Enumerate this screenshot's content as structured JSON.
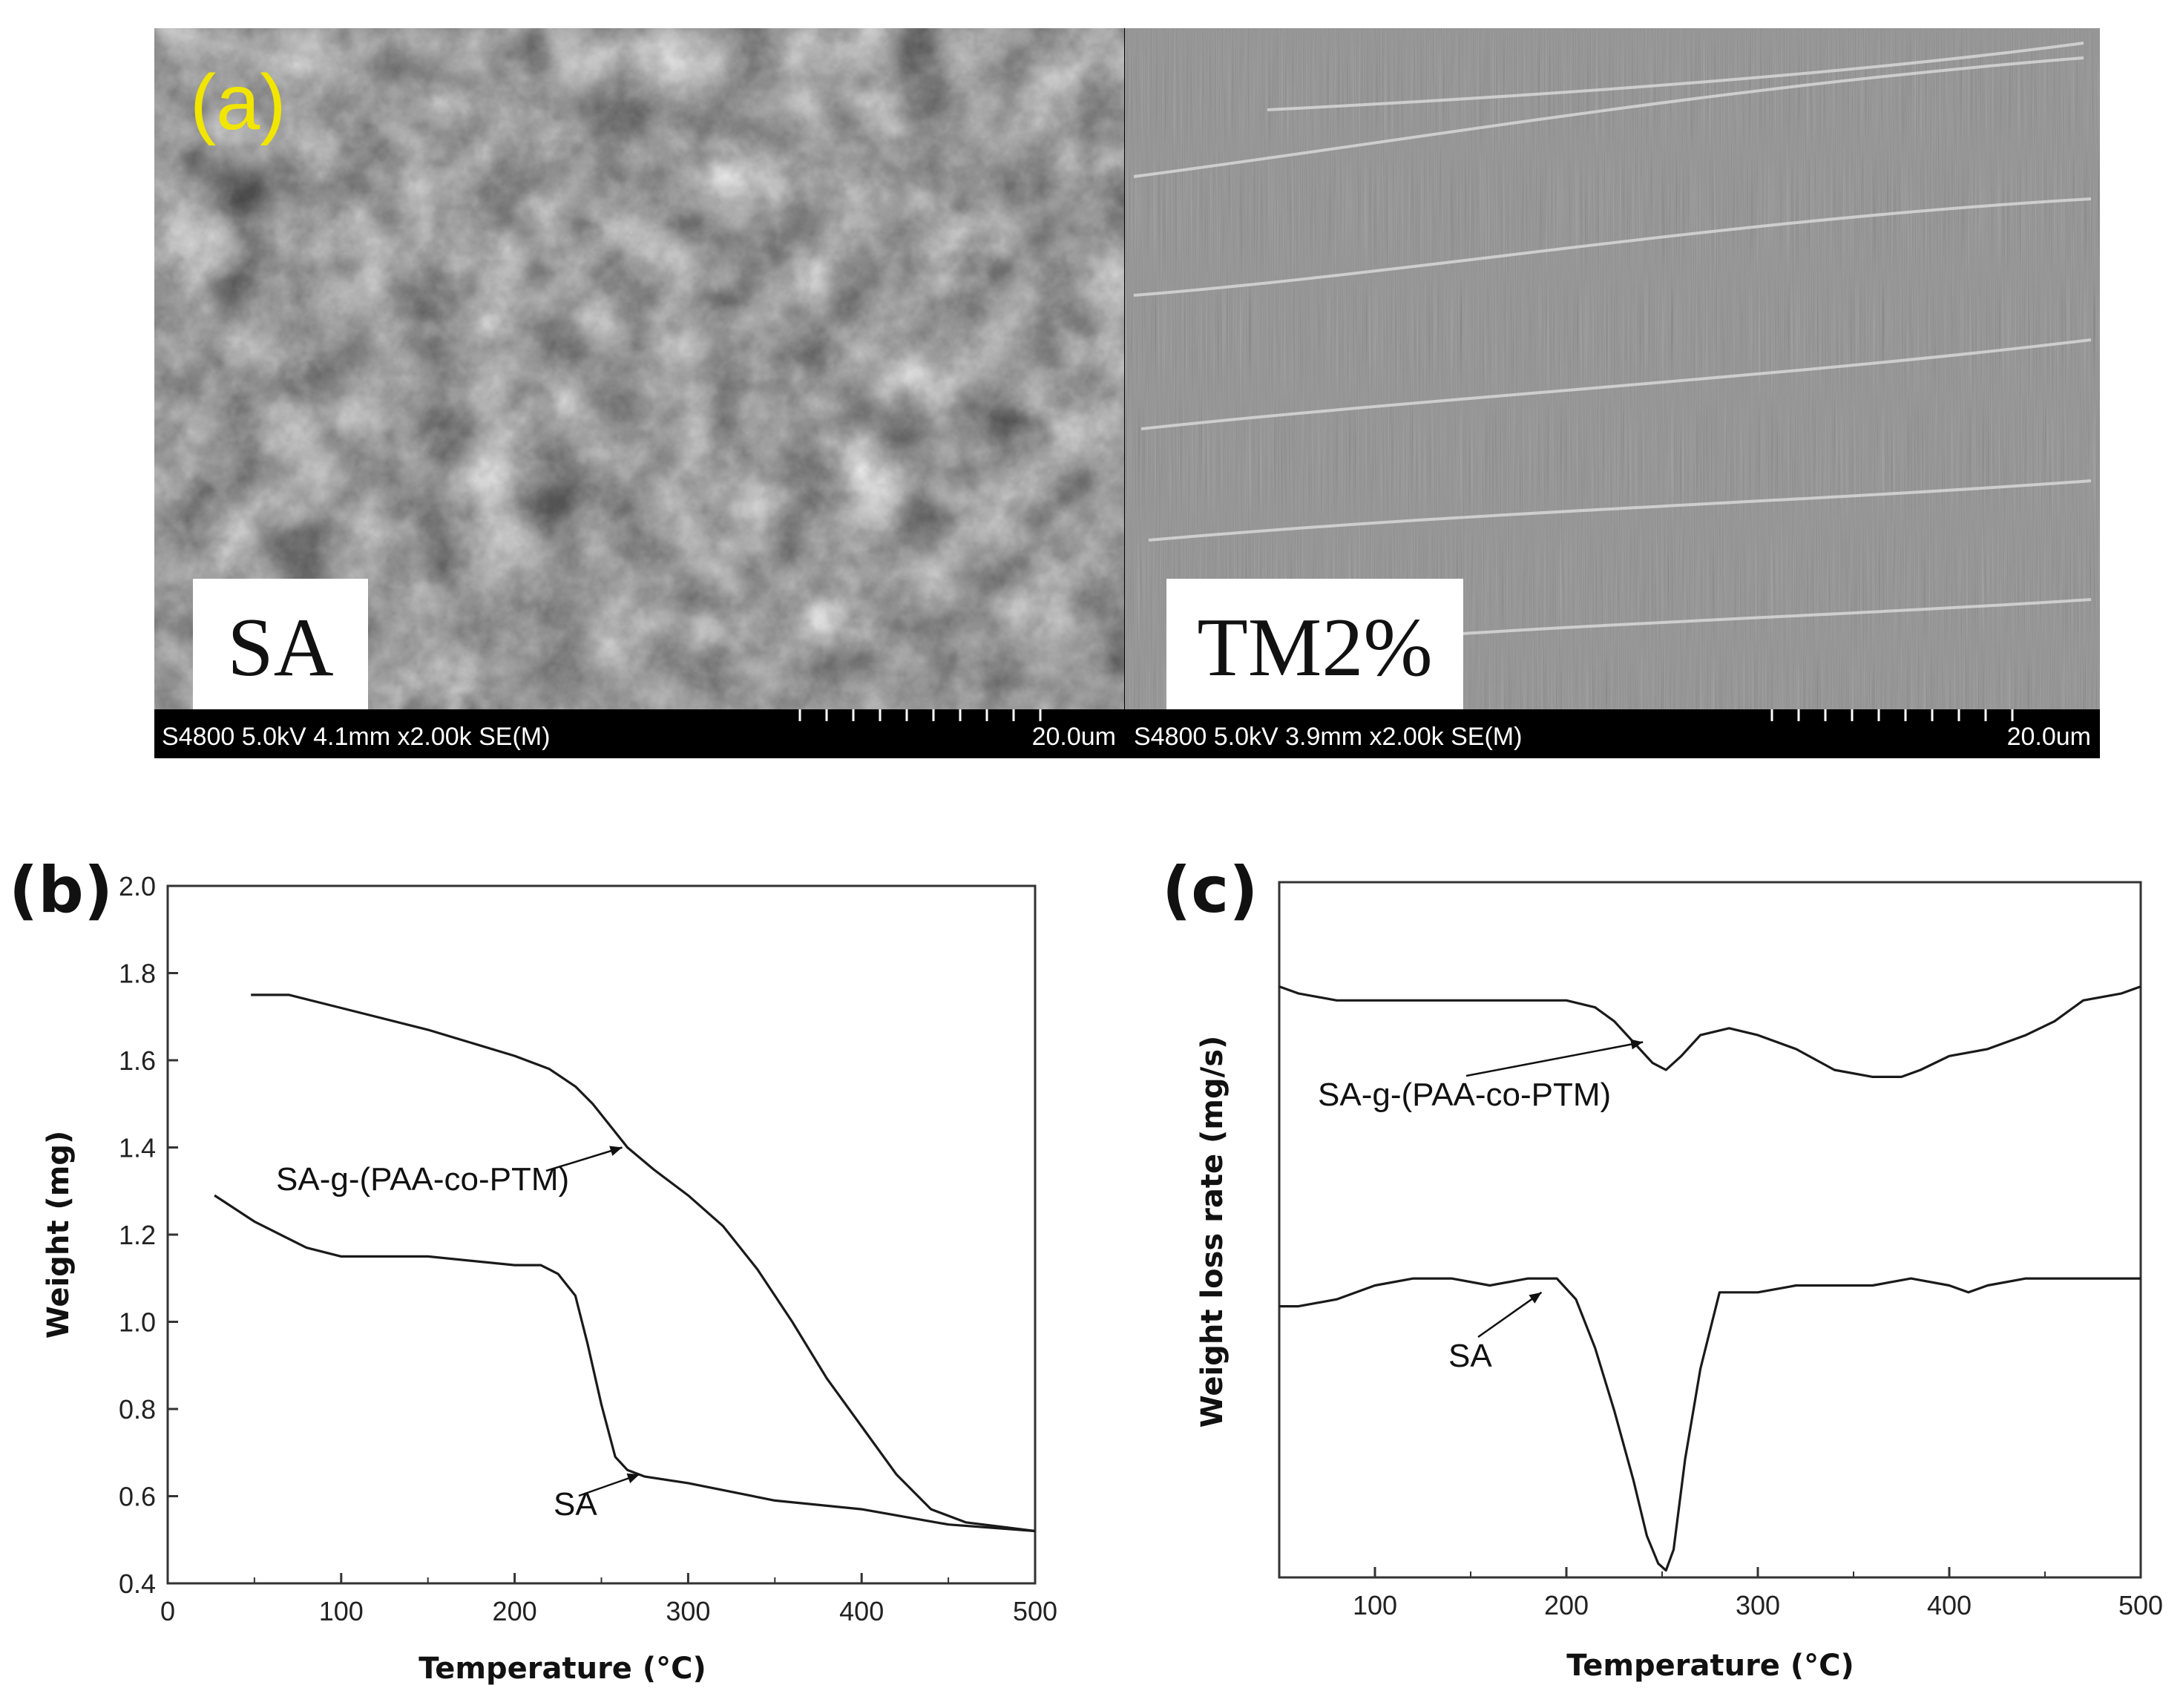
{
  "figure": {
    "panel_a": {
      "label": "(a)",
      "left_image": {
        "sample_label": "SA",
        "info_bar": "S4800 5.0kV 4.1mm x2.00k SE(M)",
        "scale_bar": "20.0um"
      },
      "right_image": {
        "sample_label": "TM2%",
        "info_bar": "S4800 5.0kV 3.9mm x2.00k SE(M)",
        "scale_bar": "20.0um"
      },
      "colors": {
        "label_a": "#f2e600",
        "info_bar": "#000000",
        "info_text": "#ffffff"
      }
    },
    "panel_b_label": "(b)",
    "panel_c_label": "(c)"
  },
  "chart_data": [
    {
      "panel": "(b)",
      "type": "line",
      "xlabel": "Temperature (°C)",
      "ylabel": "Weight (mg)",
      "xlim": [
        0,
        500
      ],
      "ylim": [
        0.4,
        2.0
      ],
      "xticks": [
        0,
        100,
        200,
        300,
        400,
        500
      ],
      "yticks": [
        0.4,
        0.6,
        0.8,
        1.0,
        1.2,
        1.4,
        1.6,
        1.8,
        2.0
      ],
      "grid": false,
      "series": [
        {
          "name": "SA-g-(PAA-co-PTM)",
          "x": [
            48,
            70,
            100,
            150,
            200,
            220,
            235,
            245,
            255,
            265,
            280,
            300,
            320,
            340,
            360,
            380,
            400,
            420,
            440,
            460,
            480,
            500
          ],
          "y": [
            1.75,
            1.75,
            1.72,
            1.67,
            1.61,
            1.58,
            1.54,
            1.5,
            1.45,
            1.4,
            1.35,
            1.29,
            1.22,
            1.12,
            1.0,
            0.87,
            0.76,
            0.65,
            0.57,
            0.54,
            0.53,
            0.52
          ]
        },
        {
          "name": "SA",
          "x": [
            27,
            50,
            80,
            100,
            150,
            200,
            215,
            225,
            235,
            242,
            250,
            258,
            265,
            275,
            300,
            350,
            400,
            450,
            500
          ],
          "y": [
            1.29,
            1.23,
            1.17,
            1.15,
            1.15,
            1.13,
            1.13,
            1.11,
            1.06,
            0.95,
            0.81,
            0.69,
            0.66,
            0.645,
            0.63,
            0.59,
            0.57,
            0.535,
            0.52
          ]
        }
      ],
      "annotations": [
        {
          "text": "SA-g-(PAA-co-PTM)",
          "target": [
            262,
            1.4
          ]
        },
        {
          "text": "SA",
          "target": [
            272,
            0.65
          ]
        }
      ]
    },
    {
      "panel": "(c)",
      "type": "line",
      "xlabel": "Temperature (°C)",
      "ylabel": "Weight loss rate (mg/s)",
      "xlim": [
        50,
        500
      ],
      "xticks": [
        100,
        200,
        300,
        400,
        500
      ],
      "ylim": [
        0,
        1
      ],
      "y_tick_labels": false,
      "grid": false,
      "series": [
        {
          "name": "SA-g-(PAA-co-PTM)",
          "x": [
            50,
            60,
            80,
            100,
            150,
            200,
            215,
            225,
            235,
            245,
            252,
            260,
            270,
            285,
            300,
            320,
            340,
            360,
            375,
            385,
            400,
            420,
            440,
            455,
            470,
            490,
            500
          ],
          "y": [
            0.85,
            0.84,
            0.83,
            0.83,
            0.83,
            0.83,
            0.82,
            0.8,
            0.77,
            0.74,
            0.73,
            0.75,
            0.78,
            0.79,
            0.78,
            0.76,
            0.73,
            0.72,
            0.72,
            0.73,
            0.75,
            0.76,
            0.78,
            0.8,
            0.83,
            0.84,
            0.85
          ]
        },
        {
          "name": "SA",
          "x": [
            50,
            60,
            80,
            100,
            120,
            140,
            160,
            180,
            195,
            205,
            215,
            225,
            235,
            242,
            248,
            252,
            256,
            262,
            270,
            280,
            300,
            320,
            340,
            360,
            380,
            400,
            410,
            420,
            440,
            460,
            480,
            500
          ],
          "y": [
            0.39,
            0.39,
            0.4,
            0.42,
            0.43,
            0.43,
            0.42,
            0.43,
            0.43,
            0.4,
            0.33,
            0.24,
            0.14,
            0.06,
            0.02,
            0.01,
            0.04,
            0.17,
            0.3,
            0.41,
            0.41,
            0.42,
            0.42,
            0.42,
            0.43,
            0.42,
            0.41,
            0.42,
            0.43,
            0.43,
            0.43,
            0.43
          ]
        }
      ],
      "annotations": [
        {
          "text": "SA-g-(PAA-co-PTM)",
          "target": [
            240,
            0.77
          ]
        },
        {
          "text": "SA",
          "target": [
            187,
            0.41
          ]
        }
      ]
    }
  ]
}
